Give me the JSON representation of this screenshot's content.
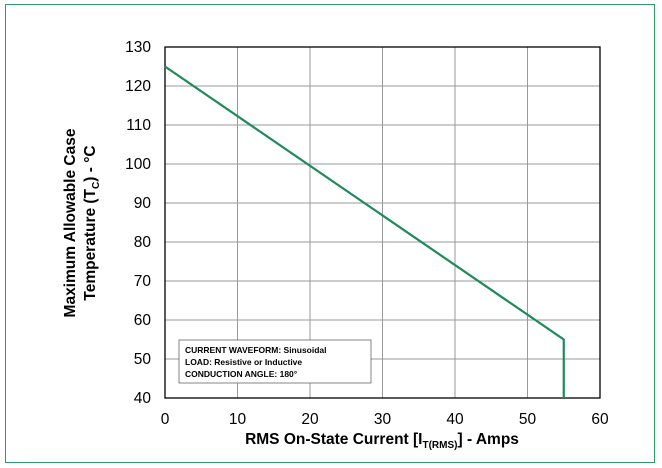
{
  "chart_data": {
    "type": "line",
    "title": "",
    "xlabel_main": "RMS On-State Current [I",
    "xlabel_sub": "T(RMS)",
    "xlabel_tail": "] - Amps",
    "ylabel_line1": "Maximum Allowable Case",
    "ylabel_line2_main": "Temperature (T",
    "ylabel_line2_sub": "C",
    "ylabel_line2_tail": ") - °C",
    "xlim": [
      0,
      60
    ],
    "ylim": [
      40,
      130
    ],
    "x_ticks": [
      "0",
      "10",
      "20",
      "30",
      "40",
      "50",
      "60"
    ],
    "y_ticks": [
      "40",
      "50",
      "60",
      "70",
      "80",
      "90",
      "100",
      "110",
      "120",
      "130"
    ],
    "x_tick_values": [
      0,
      10,
      20,
      30,
      40,
      50,
      60
    ],
    "y_tick_values": [
      40,
      50,
      60,
      70,
      80,
      90,
      100,
      110,
      120,
      130
    ],
    "grid": true,
    "series": [
      {
        "x": [
          0,
          55,
          55
        ],
        "y": [
          125,
          55,
          40
        ],
        "color": "#1f8a5a"
      }
    ],
    "annotations": [
      "CURRENT WAVEFORM: Sinusoidal",
      "LOAD: Resistive or Inductive",
      "CONDUCTION ANGLE: 180°"
    ]
  }
}
